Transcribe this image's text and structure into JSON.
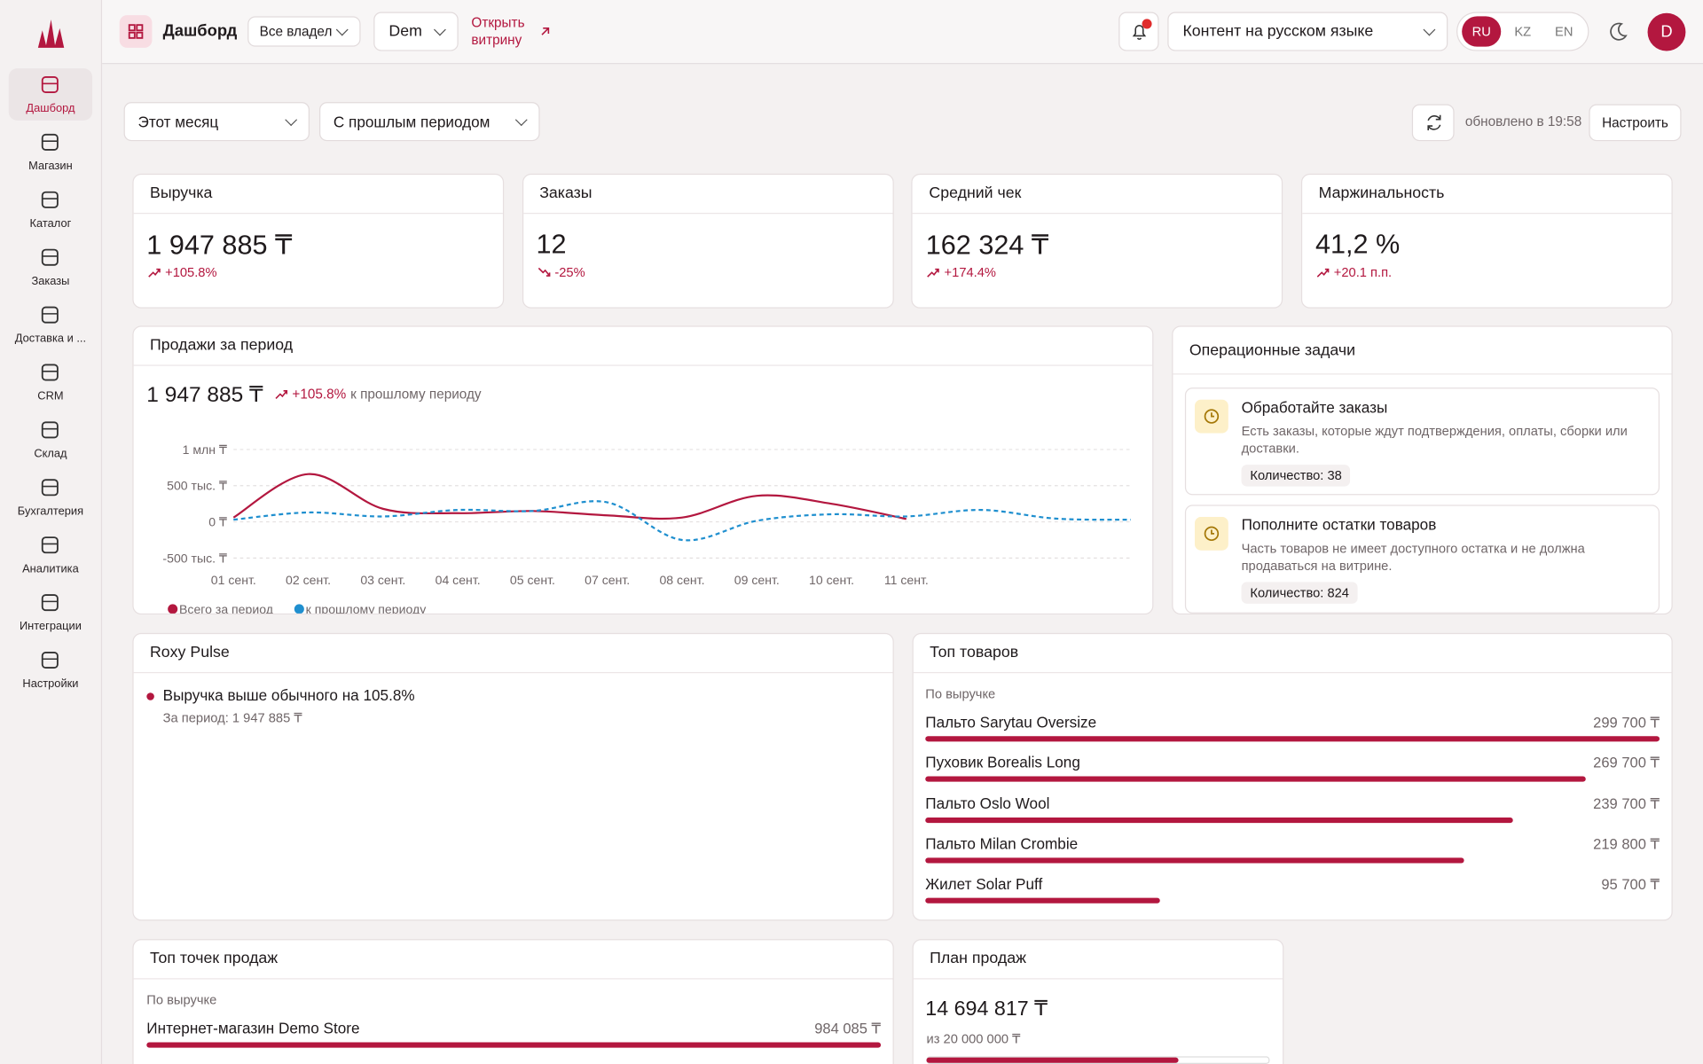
{
  "sidebar": {
    "items": [
      "Дашборд",
      "Магазин",
      "Каталог",
      "Заказы",
      "Доставка и ...",
      "CRM",
      "Склад",
      "Бухгалтерия",
      "Аналитика",
      "Интеграции",
      "Настройки"
    ],
    "active_index": 0
  },
  "header": {
    "title": "Дашборд",
    "owner_select": "Все владел",
    "store_select": "Dem",
    "open_store": "Открыть витрину",
    "content_lang": "Контент на русском языке",
    "langs": [
      "RU",
      "KZ",
      "EN"
    ],
    "active_lang": 0,
    "avatar": "D"
  },
  "filters": {
    "period": "Этот месяц",
    "compare": "С прошлым периодом",
    "updated": "обновлено в 19:58",
    "configure": "Настроить"
  },
  "kpis": [
    {
      "title": "Выручка",
      "value": "1 947 885 ₸",
      "change": "+105.8%",
      "trend": "up"
    },
    {
      "title": "Заказы",
      "value": "12",
      "change": "-25%",
      "trend": "down"
    },
    {
      "title": "Средний чек",
      "value": "162 324 ₸",
      "change": "+174.4%",
      "trend": "up"
    },
    {
      "title": "Маржинальность",
      "value": "41,2 %",
      "change": "+20.1 п.п.",
      "trend": "up"
    }
  ],
  "sales_chart": {
    "type": "line",
    "title": "Продажи за период",
    "total": "1 947 885 ₸",
    "change": "+105.8%",
    "change_note": "к прошлому периоду",
    "categories": [
      "01 сент.",
      "02 сент.",
      "03 сент.",
      "04 сент.",
      "05 сент.",
      "07 сент.",
      "08 сент.",
      "09 сент.",
      "10 сент.",
      "11 сент.",
      null,
      null,
      null
    ],
    "series": [
      {
        "name": "Всего за период",
        "color": "#b3173f",
        "dashed": false,
        "values": [
          60000,
          660000,
          180000,
          120000,
          150000,
          90000,
          60000,
          360000,
          250000,
          40000,
          null,
          null,
          null
        ]
      },
      {
        "name": "к прошлому периоду",
        "color": "#1f8fcf",
        "dashed": true,
        "values": [
          30000,
          130000,
          75000,
          165000,
          150000,
          270000,
          -250000,
          15000,
          105000,
          75000,
          165000,
          45000,
          30000
        ]
      }
    ],
    "ylim": [
      -500000,
      1000000
    ],
    "yticks": [
      {
        "value": 1000000,
        "label": "1 млн ₸"
      },
      {
        "value": 500000,
        "label": "500 тыс. ₸"
      },
      {
        "value": 0,
        "label": "0 ₸"
      },
      {
        "value": -500000,
        "label": "-500 тыс. ₸"
      }
    ],
    "grid": true
  },
  "tasks": {
    "title": "Операционные задачи",
    "items": [
      {
        "title": "Обработайте заказы",
        "text": "Есть заказы, которые ждут подтверждения, оплаты, сборки или доставки.",
        "count": "Количество: 38"
      },
      {
        "title": "Пополните остатки товаров",
        "text": "Часть товаров не имеет доступного остатка и не должна продаваться на витрине.",
        "count": "Количество: 824"
      }
    ]
  },
  "pulse": {
    "title": "Roxy Pulse",
    "items": [
      {
        "text": "Выручка выше обычного на 105.8%",
        "note": "За период: 1 947 885 ₸"
      }
    ]
  },
  "top_products": {
    "title": "Топ товаров",
    "subtitle": "По выручке",
    "names": [
      "Пальто Sarytau Oversize",
      "Пуховик Borealis Long",
      "Пальто Oslo Wool",
      "Пальто Milan Crombie",
      "Жилет Solar Puff"
    ],
    "values": [
      299700,
      269700,
      239700,
      219800,
      95700
    ],
    "value_labels": [
      "299 700 ₸",
      "269 700 ₸",
      "239 700 ₸",
      "219 800 ₸",
      "95 700 ₸"
    ]
  },
  "top_points": {
    "title": "Топ точек продаж",
    "subtitle": "По выручке",
    "names": [
      "Интернет-магазин Demo Store"
    ],
    "values": [
      984085
    ],
    "value_labels": [
      "984 085 ₸"
    ]
  },
  "plan": {
    "title": "План продаж",
    "value": 14694817,
    "value_label": "14 694 817 ₸",
    "target": 20000000,
    "target_label": "из 20 000 000 ₸"
  }
}
